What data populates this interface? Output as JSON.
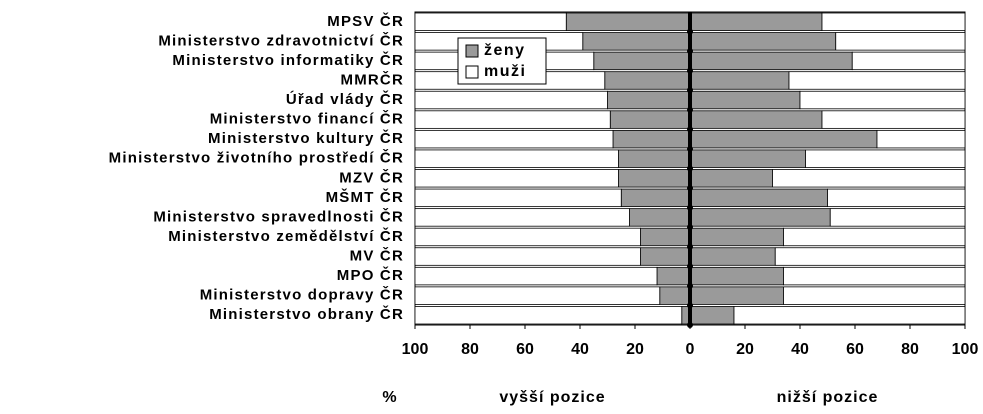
{
  "chart_data": [
    {
      "type": "bar",
      "orientation": "horizontal",
      "stacked": true,
      "x_label": "vyšší pozice",
      "unit_label": "%",
      "categories": [
        "MPSV ČR",
        "Ministerstvo zdravotnictví ČR",
        "Ministerstvo informatiky ČR",
        "MMRČR",
        "Úřad vlády ČR",
        "Ministerstvo financí ČR",
        "Ministerstvo kultury ČR",
        "Ministerstvo životního prostředí ČR",
        "MZV ČR",
        "MŠMT ČR",
        "Ministerstvo spravedlnosti ČR",
        "Ministerstvo zemědělství ČR",
        "MV ČR",
        "MPO ČR",
        "Ministerstvo dopravy ČR",
        "Ministerstvo obrany ČR"
      ],
      "series": [
        {
          "name": "ženy",
          "color": "#9a9a9a",
          "values": [
            45,
            39,
            35,
            31,
            30,
            29,
            28,
            26,
            26,
            25,
            22,
            18,
            18,
            12,
            11,
            3
          ]
        },
        {
          "name": "muži",
          "color": "#ffffff",
          "values": [
            55,
            61,
            65,
            69,
            70,
            71,
            72,
            74,
            74,
            75,
            78,
            82,
            82,
            88,
            89,
            97
          ]
        }
      ],
      "xlim": [
        100,
        0
      ],
      "xticks": [
        100,
        80,
        60,
        40,
        20,
        0
      ],
      "legend": "upper left"
    },
    {
      "type": "bar",
      "orientation": "horizontal",
      "stacked": true,
      "x_label": "nižší pozice",
      "series": [
        {
          "color": "#9a9a9a",
          "values": [
            48,
            53,
            59,
            36,
            40,
            48,
            68,
            42,
            30,
            50,
            51,
            34,
            31,
            34,
            34,
            16
          ]
        },
        {
          "color": "#ffffff",
          "values": [
            52,
            47,
            41,
            64,
            60,
            52,
            32,
            58,
            70,
            50,
            49,
            66,
            69,
            66,
            66,
            84
          ]
        }
      ],
      "xlim": [
        0,
        100
      ],
      "xticks": [
        20,
        40,
        60,
        80,
        100
      ]
    }
  ]
}
